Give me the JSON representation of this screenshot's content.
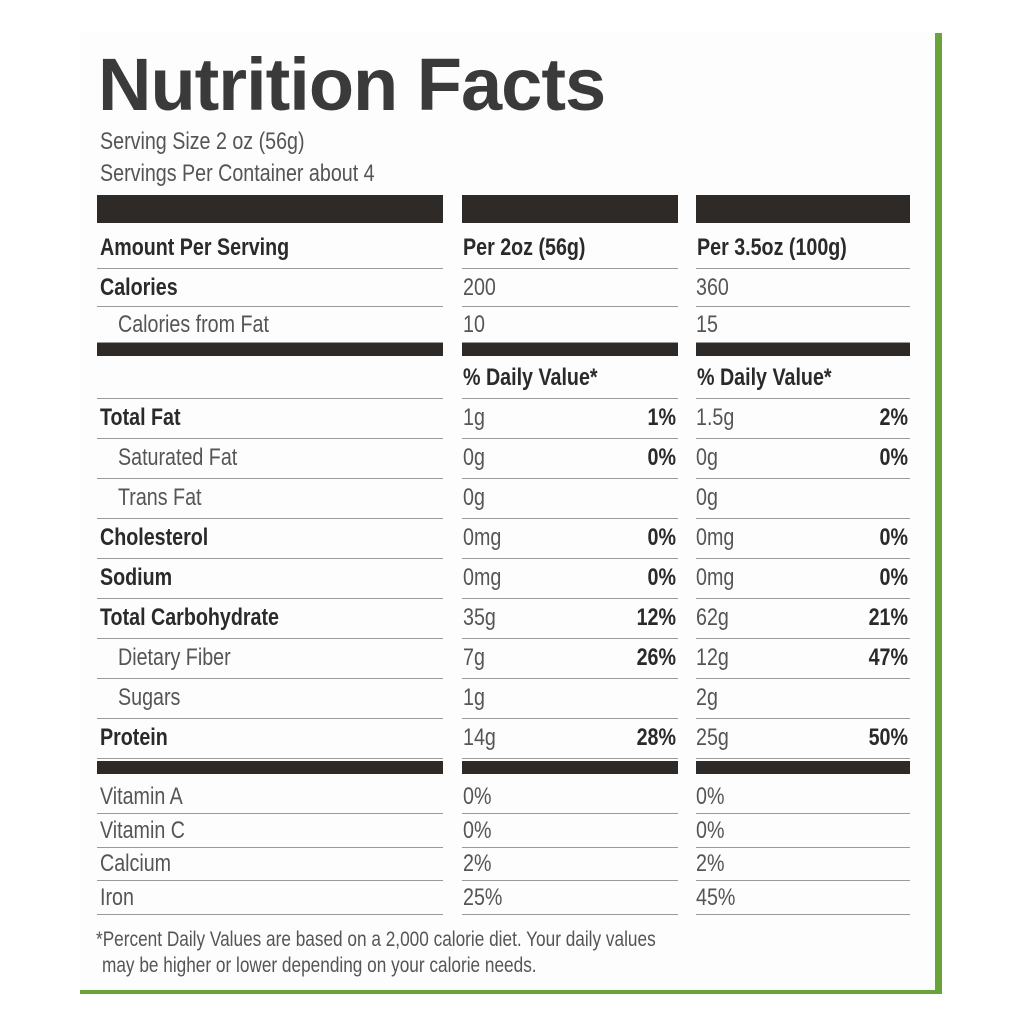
{
  "title": "Nutrition Facts",
  "serving_size": "Serving Size 2 oz (56g)",
  "servings_per_container": "Servings Per Container about 4",
  "header": [
    "Amount Per Serving",
    "Per 2oz (56g)",
    "Per 3.5oz (100g)"
  ],
  "amount_rows": [
    {
      "label": "Calories",
      "bold": true,
      "indent": false,
      "per_56g": [
        "200"
      ],
      "per_100g": [
        "360"
      ]
    },
    {
      "label": "Calories from Fat",
      "bold": false,
      "indent": true,
      "per_56g": [
        "10"
      ],
      "per_100g": [
        "15"
      ]
    }
  ],
  "daily_value_header": [
    "% Daily Value*",
    "% Daily Value*"
  ],
  "daily_value_rows": [
    {
      "label": "Total Fat",
      "bold": true,
      "indent": false,
      "per_56g": [
        "1g",
        "1%"
      ],
      "per_100g": [
        "1.5g",
        "2%"
      ]
    },
    {
      "label": "Saturated Fat",
      "bold": false,
      "indent": true,
      "per_56g": [
        "0g",
        "0%"
      ],
      "per_100g": [
        "0g",
        "0%"
      ]
    },
    {
      "label": "Trans Fat",
      "bold": false,
      "indent": true,
      "per_56g": [
        "0g"
      ],
      "per_100g": [
        "0g"
      ]
    },
    {
      "label": "Cholesterol",
      "bold": true,
      "indent": false,
      "per_56g": [
        "0mg",
        "0%"
      ],
      "per_100g": [
        "0mg",
        "0%"
      ]
    },
    {
      "label": "Sodium",
      "bold": true,
      "indent": false,
      "per_56g": [
        "0mg",
        "0%"
      ],
      "per_100g": [
        "0mg",
        "0%"
      ]
    },
    {
      "label": "Total Carbohydrate",
      "bold": true,
      "indent": false,
      "per_56g": [
        "35g",
        "12%"
      ],
      "per_100g": [
        "62g",
        "21%"
      ]
    },
    {
      "label": "Dietary Fiber",
      "bold": false,
      "indent": true,
      "per_56g": [
        "7g",
        "26%"
      ],
      "per_100g": [
        "12g",
        "47%"
      ]
    },
    {
      "label": "Sugars",
      "bold": false,
      "indent": true,
      "per_56g": [
        "1g"
      ],
      "per_100g": [
        "2g"
      ]
    },
    {
      "label": "Protein",
      "bold": true,
      "indent": false,
      "per_56g": [
        "14g",
        "28%"
      ],
      "per_100g": [
        "25g",
        "50%"
      ]
    }
  ],
  "vitamin_rows": [
    {
      "label": "Vitamin A",
      "bold": false,
      "indent": false,
      "per_56g": [
        "0%"
      ],
      "per_100g": [
        "0%"
      ]
    },
    {
      "label": "Vitamin C",
      "bold": false,
      "indent": false,
      "per_56g": [
        "0%"
      ],
      "per_100g": [
        "0%"
      ]
    },
    {
      "label": "Calcium",
      "bold": false,
      "indent": false,
      "per_56g": [
        "2%"
      ],
      "per_100g": [
        "2%"
      ]
    },
    {
      "label": "Iron",
      "bold": false,
      "indent": false,
      "per_56g": [
        "25%"
      ],
      "per_100g": [
        "45%"
      ]
    }
  ],
  "footnote": [
    "*Percent Daily Values are based on a 2,000 calorie diet. Your daily values",
    "may be higher or lower depending on your calorie needs."
  ]
}
